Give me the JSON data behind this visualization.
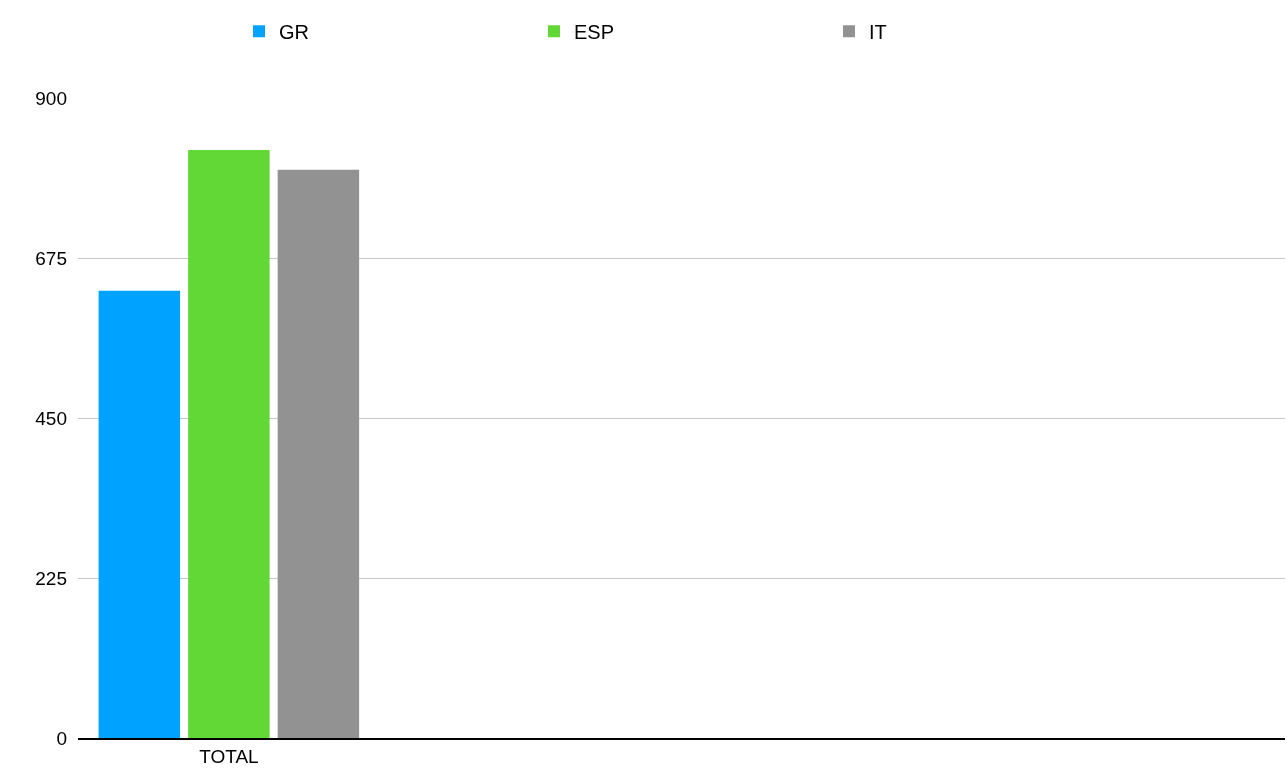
{
  "chart_data": {
    "type": "bar",
    "categories": [
      "TOTAL",
      null,
      null,
      null
    ],
    "series": [
      {
        "name": "GR",
        "color": "#00a2ff",
        "values": [
          629,
          null,
          null,
          null
        ]
      },
      {
        "name": "ESP",
        "color": "#61d836",
        "values": [
          827,
          null,
          null,
          null
        ]
      },
      {
        "name": "IT",
        "color": "#929292",
        "values": [
          799,
          null,
          null,
          null
        ]
      }
    ],
    "ylim": [
      0,
      900
    ],
    "yticks": [
      0,
      225,
      450,
      675,
      900
    ],
    "grid": "y",
    "legend": "top"
  }
}
